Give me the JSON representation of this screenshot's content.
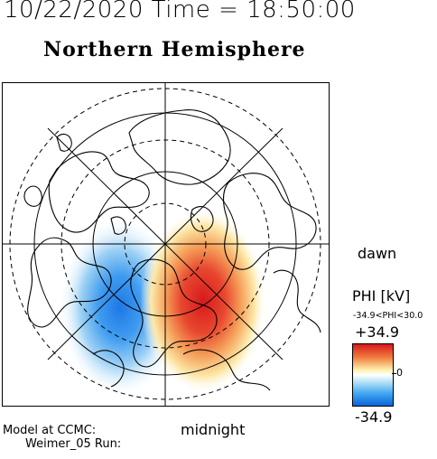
{
  "header": {
    "title": "10/22/2020 Time = 18:50:00",
    "hemisphere": "Northern Hemisphere"
  },
  "map": {
    "projection": "polar",
    "pole": "north",
    "dusk_side": "",
    "dawn_label": "dawn",
    "midnight_label": "midnight",
    "potential_kv": {
      "min": -34.9,
      "max": 34.9
    }
  },
  "colorbar": {
    "title": "PHI [kV]",
    "range_text": "-34.9<PHI<30.0",
    "max_label": "+34.9",
    "min_label": "-34.9",
    "zero_label": "0",
    "colors": {
      "max": "#d7191c",
      "mid": "#ffffff",
      "min": "#0a64d8"
    }
  },
  "credits": {
    "line1": "Model at CCMC:",
    "line2": "Weimer_05 Run:"
  }
}
